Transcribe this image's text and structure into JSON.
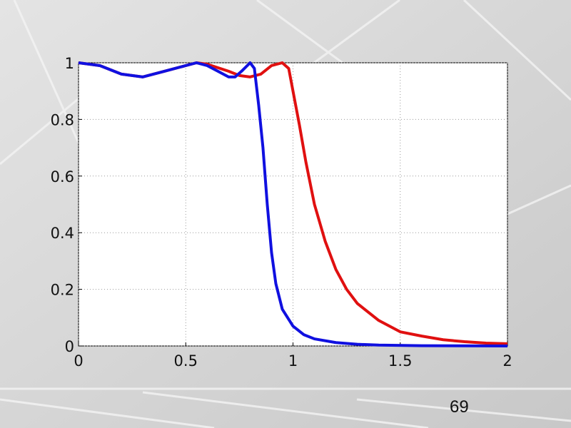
{
  "chart_data": {
    "type": "line",
    "xlim": [
      0,
      2
    ],
    "ylim": [
      0,
      1
    ],
    "xticks": [
      0,
      0.5,
      1,
      1.5,
      2
    ],
    "yticks": [
      0,
      0.2,
      0.4,
      0.6,
      0.8,
      1
    ],
    "grid": true,
    "series": [
      {
        "color": "#e01010",
        "x": [
          0,
          0.1,
          0.2,
          0.3,
          0.4,
          0.5,
          0.55,
          0.6,
          0.7,
          0.75,
          0.8,
          0.85,
          0.9,
          0.95,
          0.98,
          1.0,
          1.03,
          1.06,
          1.1,
          1.15,
          1.2,
          1.25,
          1.3,
          1.4,
          1.5,
          1.6,
          1.7,
          1.8,
          1.9,
          2.0
        ],
        "values": [
          1,
          0.99,
          0.96,
          0.95,
          0.97,
          0.99,
          1.0,
          0.995,
          0.97,
          0.955,
          0.95,
          0.96,
          0.99,
          1.0,
          0.98,
          0.9,
          0.78,
          0.65,
          0.5,
          0.37,
          0.27,
          0.2,
          0.15,
          0.09,
          0.05,
          0.035,
          0.022,
          0.015,
          0.01,
          0.008
        ]
      },
      {
        "color": "#1010e0",
        "x": [
          0,
          0.1,
          0.2,
          0.3,
          0.4,
          0.5,
          0.55,
          0.6,
          0.65,
          0.7,
          0.73,
          0.76,
          0.8,
          0.82,
          0.84,
          0.86,
          0.88,
          0.9,
          0.92,
          0.95,
          1.0,
          1.05,
          1.1,
          1.2,
          1.3,
          1.4,
          1.6,
          2.0
        ],
        "values": [
          1,
          0.99,
          0.96,
          0.95,
          0.97,
          0.99,
          1.0,
          0.99,
          0.97,
          0.95,
          0.95,
          0.97,
          1.0,
          0.98,
          0.85,
          0.7,
          0.5,
          0.33,
          0.22,
          0.13,
          0.07,
          0.04,
          0.025,
          0.012,
          0.006,
          0.003,
          0.001,
          0
        ]
      }
    ]
  },
  "page_number": "69"
}
